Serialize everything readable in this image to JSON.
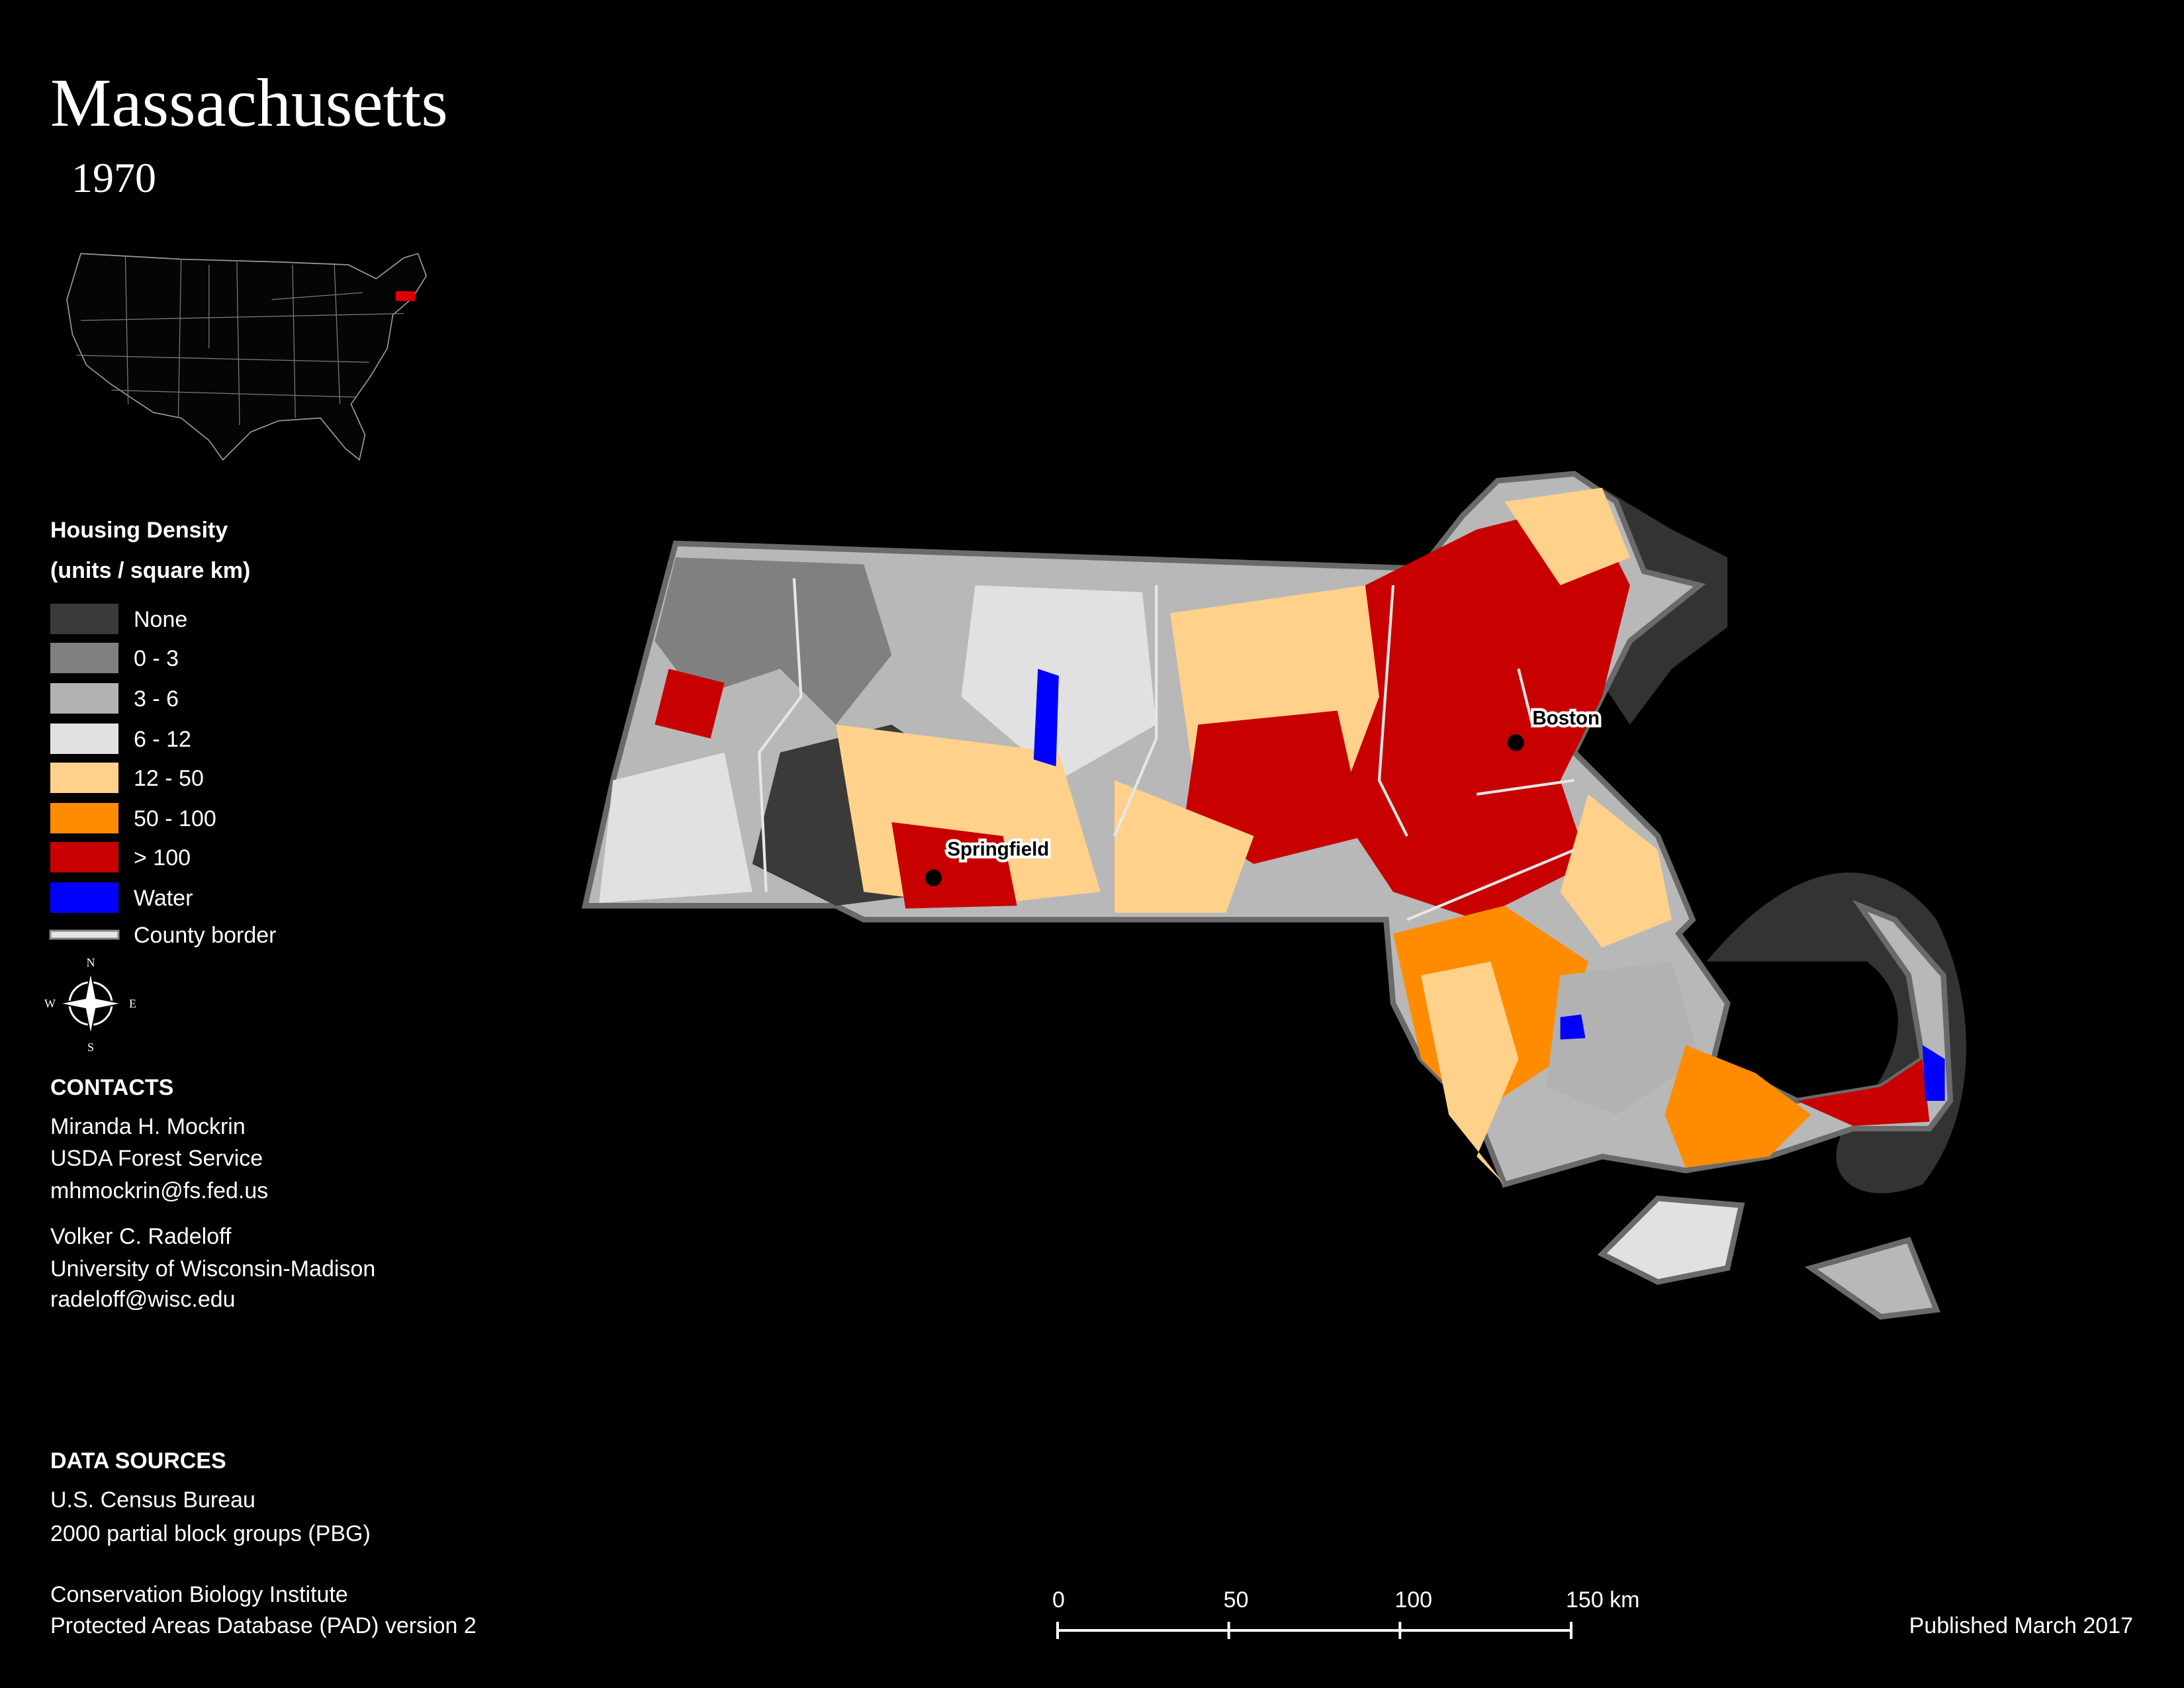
{
  "header": {
    "title": "Massachusetts",
    "subtitle": "1970"
  },
  "legend": {
    "title": "Housing Density",
    "subtitle": "(units / square km)",
    "items": [
      {
        "label": "None",
        "color": "#3a3a3a"
      },
      {
        "label": "0 - 3",
        "color": "#808080"
      },
      {
        "label": "3 - 6",
        "color": "#b2b2b2"
      },
      {
        "label": "6 - 12",
        "color": "#e1e1e1"
      },
      {
        "label": "12 - 50",
        "color": "#ffd18a"
      },
      {
        "label": "50 - 100",
        "color": "#ff8c00"
      },
      {
        "label": "> 100",
        "color": "#c80000"
      },
      {
        "label": "Water",
        "color": "#0000ff"
      }
    ],
    "county_border": {
      "label": "County border",
      "color": "#e6e6e6"
    }
  },
  "compass": {
    "n": "N",
    "e": "E",
    "s": "S",
    "w": "W"
  },
  "map": {
    "cities": [
      "Boston",
      "Springfield"
    ]
  },
  "contacts": {
    "title": "CONTACTS",
    "people": [
      [
        "Miranda H. Mockrin",
        "USDA Forest Service",
        "mhmockrin@fs.fed.us"
      ],
      [
        "Volker C. Radeloff",
        "University of Wisconsin-Madison",
        "radeloff@wisc.edu"
      ]
    ]
  },
  "data_sources": {
    "title": "DATA SOURCES",
    "sources": [
      [
        "U.S. Census Bureau",
        "2000 partial block groups (PBG)"
      ],
      [
        "Conservation Biology Institute",
        "Protected Areas Database (PAD) version 2"
      ]
    ]
  },
  "scale_bar": {
    "labels": [
      "0",
      "50",
      "100",
      "150 km"
    ]
  },
  "footer": {
    "published": "Published March 2017"
  }
}
